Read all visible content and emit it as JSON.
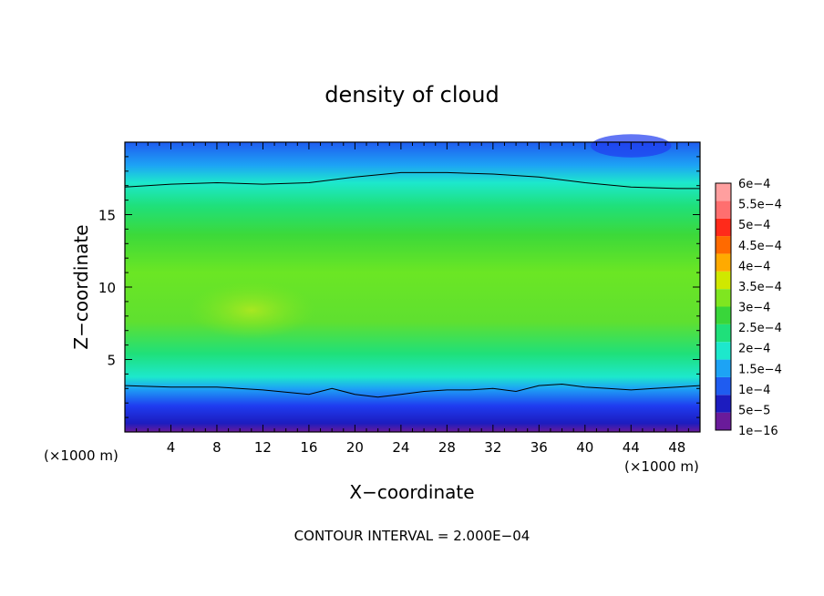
{
  "chart_data": {
    "type": "heatmap",
    "title": "density of cloud",
    "xlabel": "X−coordinate",
    "ylabel": "Z−coordinate",
    "x_unit": "(×1000 m)",
    "x_unit_right": "(×1000 m)",
    "xlim": [
      0,
      50
    ],
    "ylim": [
      0,
      20
    ],
    "x_ticks": [
      4,
      8,
      12,
      16,
      20,
      24,
      28,
      32,
      36,
      40,
      44,
      48
    ],
    "y_ticks": [
      5,
      10,
      15
    ],
    "colorbar": {
      "levels": [
        "1e−16",
        "5e−5",
        "1e−4",
        "1.5e−4",
        "2e−4",
        "2.5e−4",
        "3e−4",
        "3.5e−4",
        "4e−4",
        "4.5e−4",
        "5e−4",
        "5.5e−4",
        "6e−4"
      ],
      "colors": [
        "#6a1b9a",
        "#1c1cbf",
        "#1f5cf0",
        "#1da3f5",
        "#1de8cc",
        "#1fe07a",
        "#39d63a",
        "#7fe620",
        "#d0e800",
        "#ffaa00",
        "#ff6a00",
        "#ff2a1a",
        "#ff6f6f",
        "#ff9f9f"
      ]
    },
    "contour_lines": [
      {
        "level": "1e−4",
        "x": [
          0,
          4,
          8,
          12,
          16,
          18,
          20,
          22,
          24,
          26,
          28,
          30,
          32,
          34,
          36,
          38,
          40,
          42,
          44,
          46,
          48,
          50
        ],
        "z": [
          3.2,
          3.1,
          3.1,
          2.9,
          2.6,
          3.0,
          2.6,
          2.4,
          2.6,
          2.8,
          2.9,
          2.9,
          3.0,
          2.8,
          3.2,
          3.3,
          3.1,
          3.0,
          2.9,
          3.0,
          3.1,
          3.2
        ]
      },
      {
        "level": "2e−4",
        "x": [
          0,
          4,
          8,
          12,
          16,
          20,
          24,
          28,
          32,
          36,
          40,
          44,
          48,
          50
        ],
        "z": [
          16.9,
          17.1,
          17.2,
          17.1,
          17.2,
          17.6,
          17.9,
          17.9,
          17.8,
          17.6,
          17.2,
          16.9,
          16.8,
          16.8
        ]
      }
    ],
    "grid": false
  },
  "footer": {
    "contour_interval": "CONTOUR INTERVAL = 2.000E−04"
  }
}
